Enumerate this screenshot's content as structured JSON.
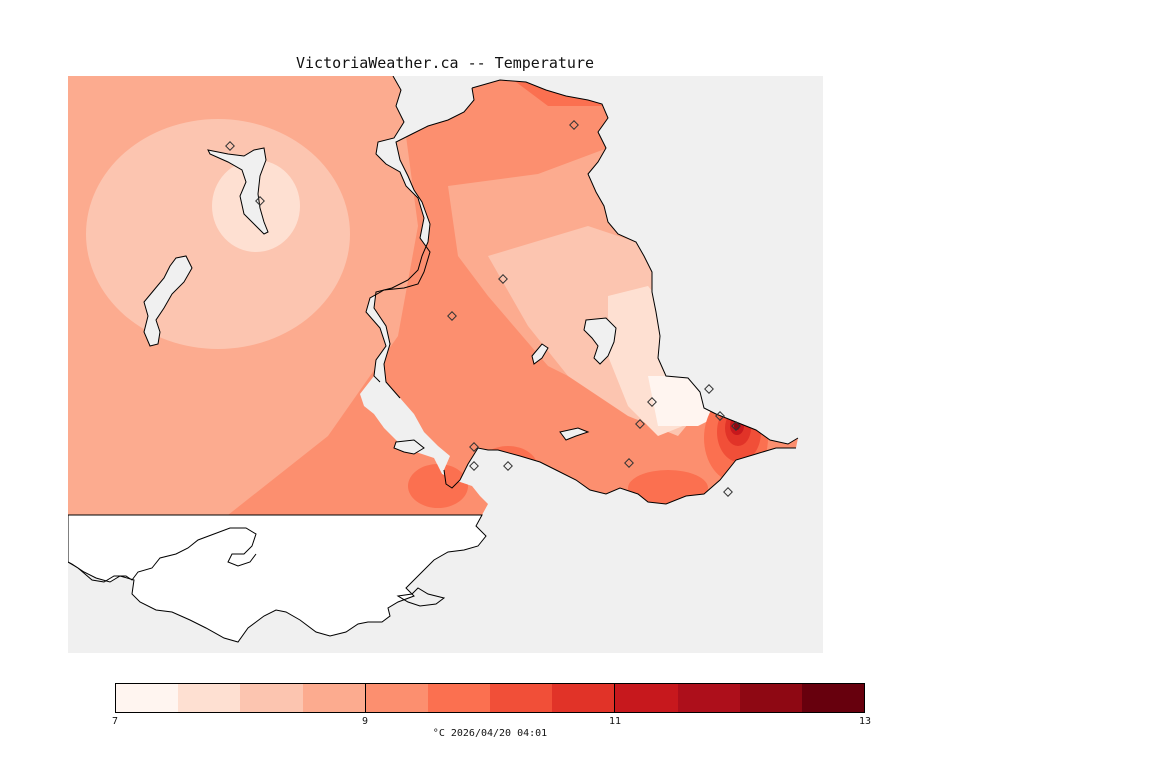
{
  "title": "VictoriaWeather.ca -- Temperature",
  "legend": {
    "ticks": [
      "7",
      "9",
      "11",
      "13"
    ],
    "colors": [
      "#fff5f0",
      "#fee0d2",
      "#fcc5b0",
      "#fcab8f",
      "#fc8f6f",
      "#fb7050",
      "#f14f38",
      "#e13328",
      "#c7181d",
      "#ad0f1b",
      "#8e0813",
      "#67000d"
    ],
    "caption": "°C  2026/04/20 04:01"
  },
  "map": {
    "sea_color": "#f0f0f0",
    "land_color": "#ffffff",
    "unit": "°C",
    "value_range": [
      7,
      13
    ]
  }
}
